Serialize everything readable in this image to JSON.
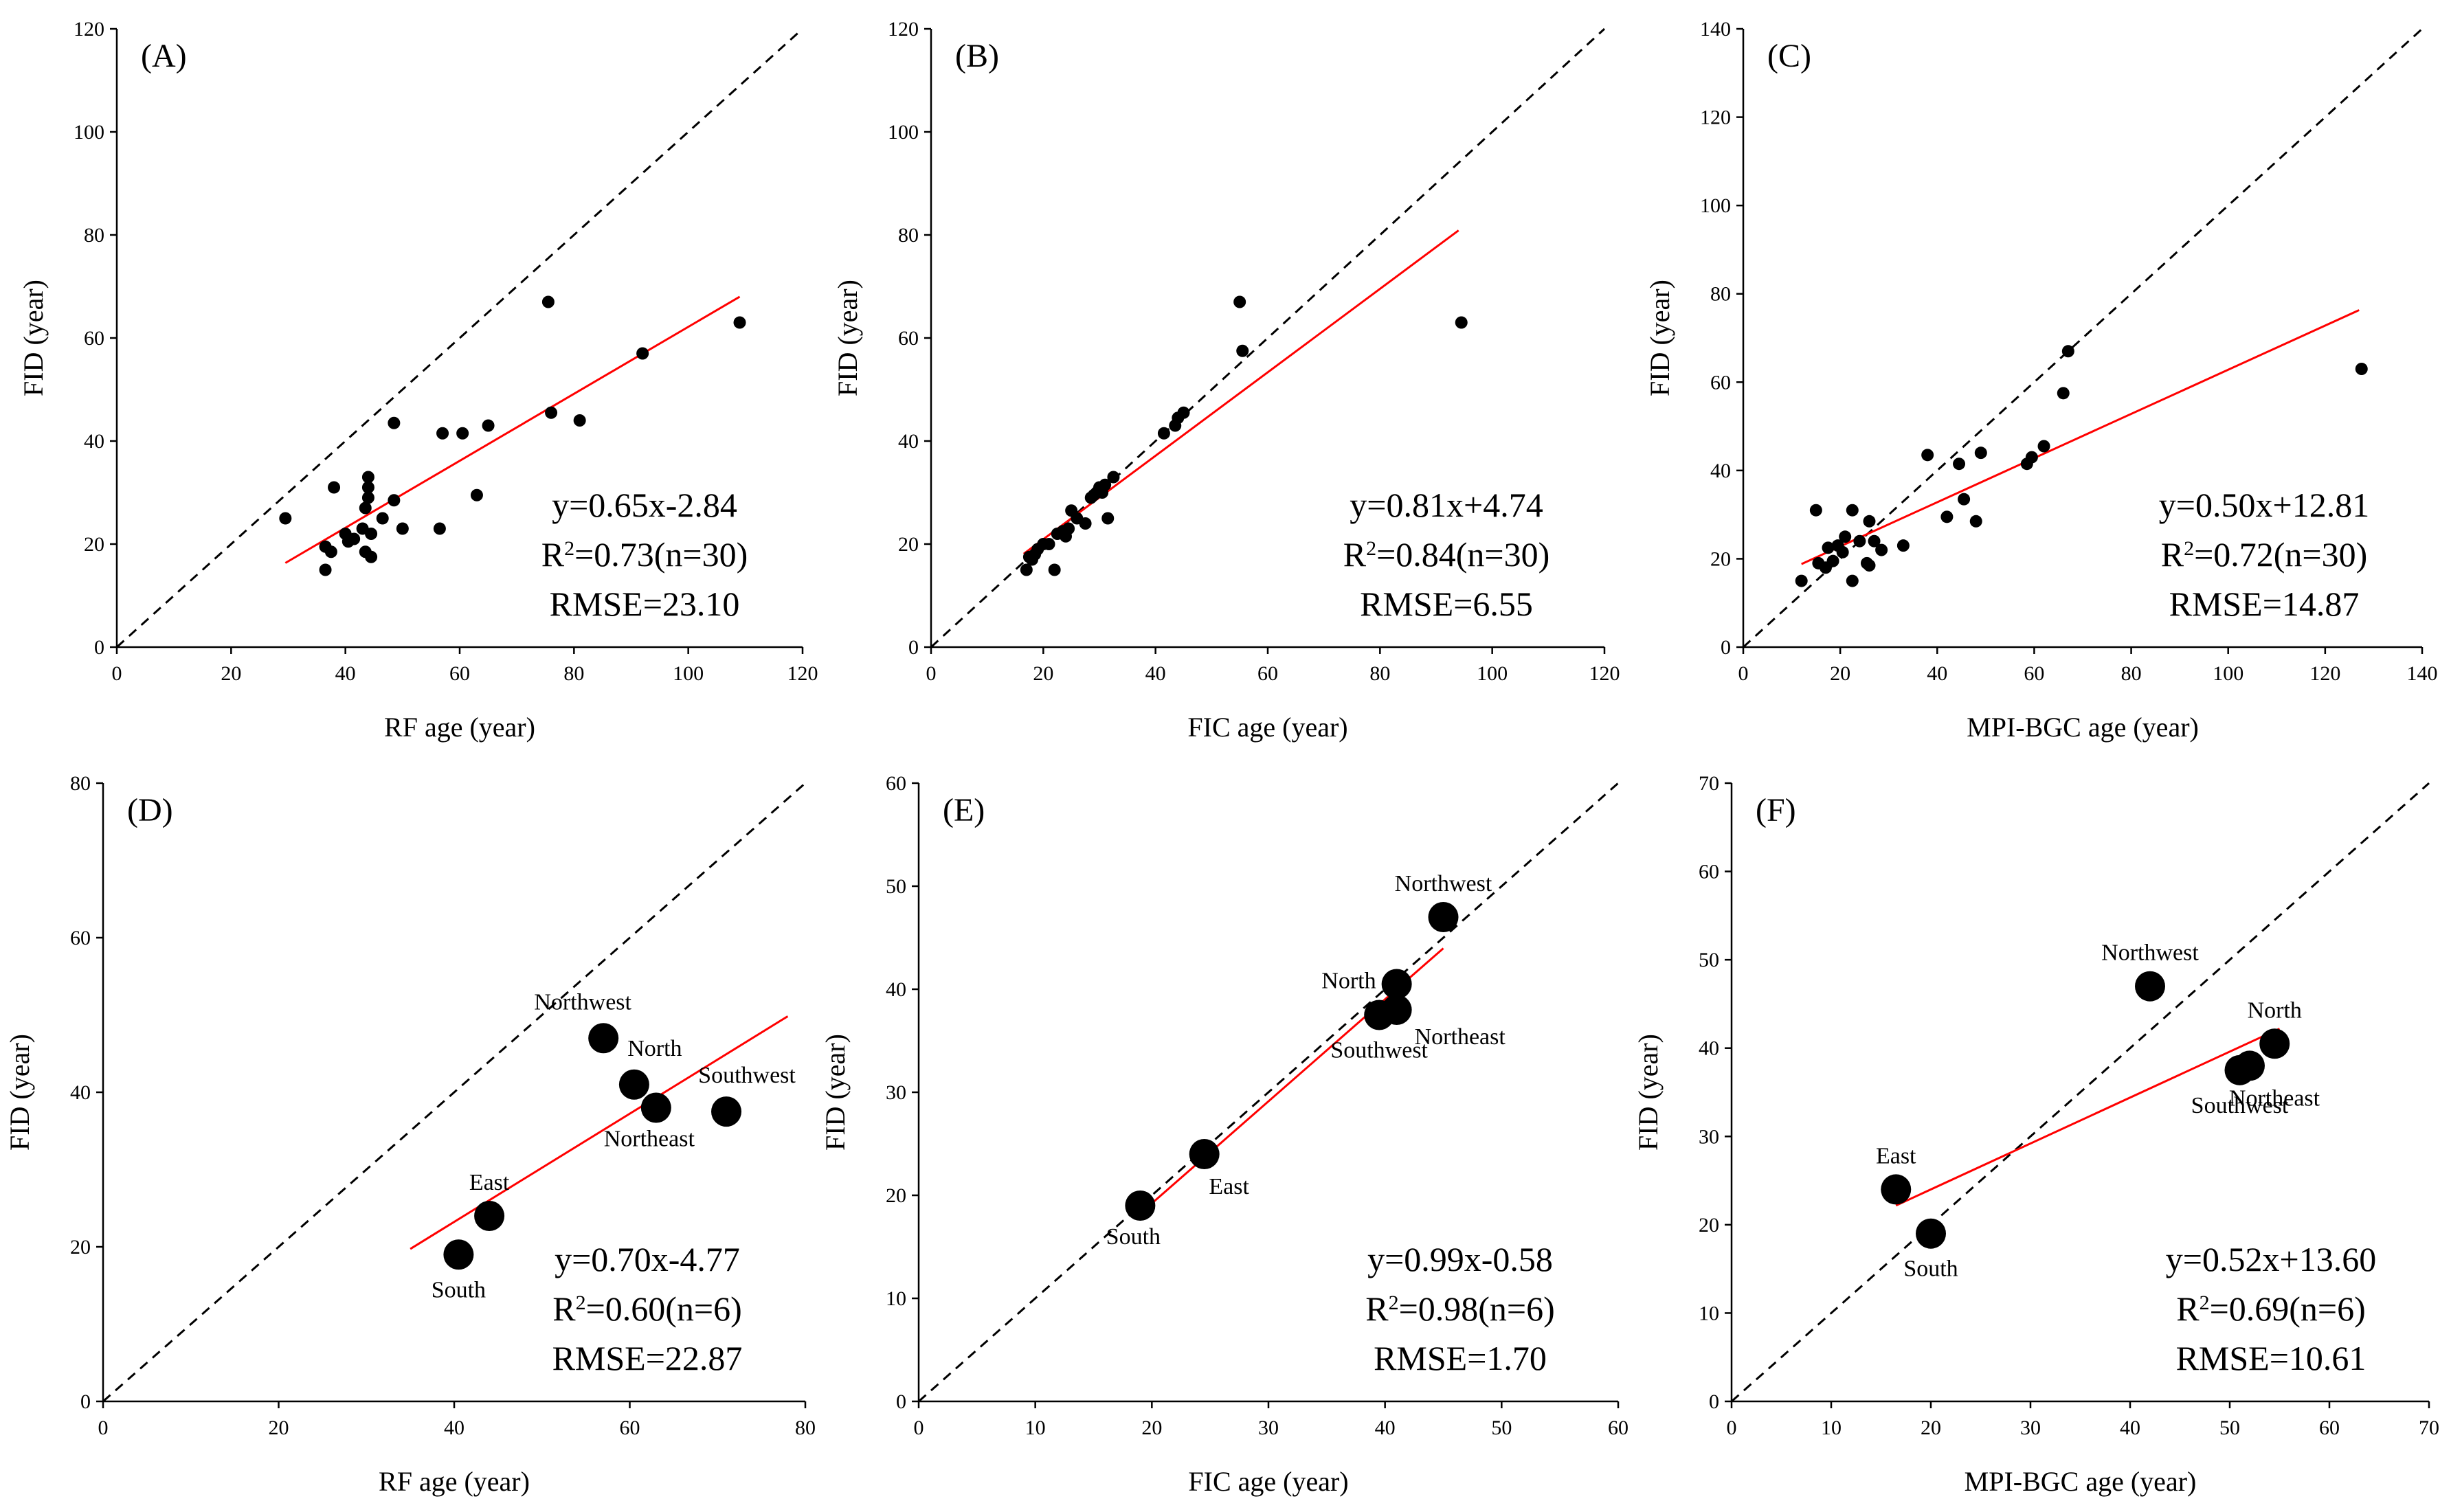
{
  "chart_data": [
    {
      "type": "scatter",
      "panel": "(A)",
      "xlabel": "RF age (year)",
      "ylabel": "FID (year)",
      "xlim": [
        0,
        120
      ],
      "ylim": [
        0,
        120
      ],
      "xticks": [
        0,
        20,
        40,
        60,
        80,
        100,
        120
      ],
      "yticks": [
        0,
        20,
        40,
        60,
        80,
        100,
        120
      ],
      "fit": {
        "slope": 0.65,
        "intercept": -2.84,
        "x_range": [
          29.5,
          109
        ]
      },
      "annotations": [
        "y=0.65x-2.84",
        "R2=0.73(n=30)",
        "RMSE=23.10"
      ],
      "points": [
        {
          "x": 29.5,
          "y": 25
        },
        {
          "x": 36.5,
          "y": 19.5
        },
        {
          "x": 37.5,
          "y": 18.5
        },
        {
          "x": 38,
          "y": 31
        },
        {
          "x": 36.5,
          "y": 15
        },
        {
          "x": 40,
          "y": 22
        },
        {
          "x": 41.5,
          "y": 21
        },
        {
          "x": 43,
          "y": 23
        },
        {
          "x": 43.5,
          "y": 27
        },
        {
          "x": 44,
          "y": 33
        },
        {
          "x": 44,
          "y": 31
        },
        {
          "x": 44,
          "y": 29
        },
        {
          "x": 43.5,
          "y": 18.5
        },
        {
          "x": 44.5,
          "y": 17.5
        },
        {
          "x": 44.5,
          "y": 22
        },
        {
          "x": 48.5,
          "y": 43.5
        },
        {
          "x": 48.5,
          "y": 28.5
        },
        {
          "x": 50,
          "y": 23
        },
        {
          "x": 56.5,
          "y": 23
        },
        {
          "x": 57,
          "y": 41.5
        },
        {
          "x": 60.5,
          "y": 41.5
        },
        {
          "x": 63,
          "y": 29.5
        },
        {
          "x": 65,
          "y": 43
        },
        {
          "x": 75.5,
          "y": 67
        },
        {
          "x": 76,
          "y": 45.5
        },
        {
          "x": 81,
          "y": 44
        },
        {
          "x": 92,
          "y": 57
        },
        {
          "x": 109,
          "y": 63
        },
        {
          "x": 46.5,
          "y": 25
        },
        {
          "x": 40.5,
          "y": 20.5
        }
      ]
    },
    {
      "type": "scatter",
      "panel": "(B)",
      "xlabel": "FIC age (year)",
      "ylabel": "FID (year)",
      "xlim": [
        0,
        120
      ],
      "ylim": [
        0,
        120
      ],
      "xticks": [
        0,
        20,
        40,
        60,
        80,
        100,
        120
      ],
      "yticks": [
        0,
        20,
        40,
        60,
        80,
        100,
        120
      ],
      "fit": {
        "slope": 0.81,
        "intercept": 4.74,
        "x_range": [
          16.5,
          94
        ]
      },
      "annotations": [
        "y=0.81x+4.74",
        "R2=0.84(n=30)",
        "RMSE=6.55"
      ],
      "points": [
        {
          "x": 17,
          "y": 15
        },
        {
          "x": 17.5,
          "y": 17.5
        },
        {
          "x": 18.5,
          "y": 18
        },
        {
          "x": 19,
          "y": 19
        },
        {
          "x": 20,
          "y": 20
        },
        {
          "x": 22,
          "y": 15
        },
        {
          "x": 22.5,
          "y": 22
        },
        {
          "x": 23.5,
          "y": 22.5
        },
        {
          "x": 24.5,
          "y": 23
        },
        {
          "x": 25,
          "y": 26.5
        },
        {
          "x": 27.5,
          "y": 24
        },
        {
          "x": 28.5,
          "y": 29
        },
        {
          "x": 29.5,
          "y": 30
        },
        {
          "x": 30,
          "y": 31
        },
        {
          "x": 31.5,
          "y": 25
        },
        {
          "x": 32.5,
          "y": 33
        },
        {
          "x": 41.5,
          "y": 41.5
        },
        {
          "x": 43.5,
          "y": 43
        },
        {
          "x": 44,
          "y": 44.5
        },
        {
          "x": 45,
          "y": 45.5
        },
        {
          "x": 55,
          "y": 67
        },
        {
          "x": 55.5,
          "y": 57.5
        },
        {
          "x": 94.5,
          "y": 63
        },
        {
          "x": 18,
          "y": 17
        },
        {
          "x": 21,
          "y": 20
        },
        {
          "x": 26,
          "y": 25
        },
        {
          "x": 29,
          "y": 29.5
        },
        {
          "x": 31,
          "y": 31.5
        },
        {
          "x": 24,
          "y": 21.5
        },
        {
          "x": 30.5,
          "y": 30
        }
      ]
    },
    {
      "type": "scatter",
      "panel": "(C)",
      "xlabel": "MPI-BGC age (year)",
      "ylabel": "FID (year)",
      "xlim": [
        0,
        140
      ],
      "ylim": [
        0,
        140
      ],
      "xticks": [
        0,
        20,
        40,
        60,
        80,
        100,
        120,
        140
      ],
      "yticks": [
        0,
        20,
        40,
        60,
        80,
        100,
        120,
        140
      ],
      "fit": {
        "slope": 0.5,
        "intercept": 12.81,
        "x_range": [
          12,
          127
        ]
      },
      "annotations": [
        "y=0.50x+12.81",
        "R2=0.72(n=30)",
        "RMSE=14.87"
      ],
      "points": [
        {
          "x": 12,
          "y": 15
        },
        {
          "x": 15,
          "y": 31
        },
        {
          "x": 15.5,
          "y": 19
        },
        {
          "x": 17,
          "y": 18
        },
        {
          "x": 17.5,
          "y": 22.5
        },
        {
          "x": 18.5,
          "y": 19.5
        },
        {
          "x": 19.5,
          "y": 23
        },
        {
          "x": 21,
          "y": 25
        },
        {
          "x": 22.5,
          "y": 31
        },
        {
          "x": 22.5,
          "y": 15
        },
        {
          "x": 24,
          "y": 24
        },
        {
          "x": 25.5,
          "y": 19
        },
        {
          "x": 26,
          "y": 28.5
        },
        {
          "x": 26,
          "y": 18.5
        },
        {
          "x": 27,
          "y": 24
        },
        {
          "x": 28.5,
          "y": 22
        },
        {
          "x": 33,
          "y": 23
        },
        {
          "x": 38,
          "y": 43.5
        },
        {
          "x": 42,
          "y": 29.5
        },
        {
          "x": 44.5,
          "y": 41.5
        },
        {
          "x": 45.5,
          "y": 33.5
        },
        {
          "x": 48,
          "y": 28.5
        },
        {
          "x": 49,
          "y": 44
        },
        {
          "x": 58.5,
          "y": 41.5
        },
        {
          "x": 59.5,
          "y": 43
        },
        {
          "x": 62,
          "y": 45.5
        },
        {
          "x": 66,
          "y": 57.5
        },
        {
          "x": 67,
          "y": 67
        },
        {
          "x": 127.5,
          "y": 63
        },
        {
          "x": 20.5,
          "y": 21.5
        }
      ]
    },
    {
      "type": "scatter",
      "panel": "(D)",
      "xlabel": "RF age (year)",
      "ylabel": "FID (year)",
      "xlim": [
        0,
        80
      ],
      "ylim": [
        0,
        80
      ],
      "xticks": [
        0,
        20,
        40,
        60,
        80
      ],
      "yticks": [
        0,
        20,
        40,
        60,
        80
      ],
      "fit": {
        "slope": 0.7,
        "intercept": -4.77,
        "x_range": [
          35,
          78
        ]
      },
      "annotations": [
        "y=0.70x-4.77",
        "R2=0.60(n=6)",
        "RMSE=22.87"
      ],
      "points": [
        {
          "x": 40.5,
          "y": 19,
          "label": "South",
          "pos": "below"
        },
        {
          "x": 44,
          "y": 24,
          "label": "East",
          "pos": "above"
        },
        {
          "x": 57,
          "y": 47,
          "label": "Northwest",
          "pos": "upper-left"
        },
        {
          "x": 60.5,
          "y": 41,
          "label": "North",
          "pos": "upper-right"
        },
        {
          "x": 63,
          "y": 38,
          "label": "Northeast",
          "pos": "lower-left"
        },
        {
          "x": 71,
          "y": 37.5,
          "label": "Southwest",
          "pos": "upper-right"
        }
      ]
    },
    {
      "type": "scatter",
      "panel": "(E)",
      "xlabel": "FIC age (year)",
      "ylabel": "FID (year)",
      "xlim": [
        0,
        60
      ],
      "ylim": [
        0,
        60
      ],
      "xticks": [
        0,
        10,
        20,
        30,
        40,
        50,
        60
      ],
      "yticks": [
        0,
        10,
        20,
        30,
        40,
        50,
        60
      ],
      "fit": {
        "slope": 0.99,
        "intercept": -0.58,
        "x_range": [
          19,
          45
        ]
      },
      "annotations": [
        "y=0.99x-0.58",
        "R2=0.98(n=6)",
        "RMSE=1.70"
      ],
      "points": [
        {
          "x": 19,
          "y": 19,
          "label": "South",
          "pos": "lower-left"
        },
        {
          "x": 24.5,
          "y": 24,
          "label": "East",
          "pos": "lower-right"
        },
        {
          "x": 45,
          "y": 47,
          "label": "Northwest",
          "pos": "above"
        },
        {
          "x": 41,
          "y": 40.5,
          "label": "North",
          "pos": "left"
        },
        {
          "x": 41,
          "y": 38,
          "label": "Northeast",
          "pos": "right"
        },
        {
          "x": 39.5,
          "y": 37.5,
          "label": "Southwest",
          "pos": "below"
        }
      ]
    },
    {
      "type": "scatter",
      "panel": "(F)",
      "xlabel": "MPI-BGC age (year)",
      "ylabel": "FID (year)",
      "xlim": [
        0,
        70
      ],
      "ylim": [
        0,
        70
      ],
      "xticks": [
        0,
        10,
        20,
        30,
        40,
        50,
        60,
        70
      ],
      "yticks": [
        0,
        10,
        20,
        30,
        40,
        50,
        60,
        70
      ],
      "fit": {
        "slope": 0.52,
        "intercept": 13.6,
        "x_range": [
          16.5,
          55
        ]
      },
      "annotations": [
        "y=0.52x+13.60",
        "R2=0.69(n=6)",
        "RMSE=10.61"
      ],
      "points": [
        {
          "x": 20,
          "y": 19,
          "label": "South",
          "pos": "below"
        },
        {
          "x": 16.5,
          "y": 24,
          "label": "East",
          "pos": "above"
        },
        {
          "x": 42,
          "y": 47,
          "label": "Northwest",
          "pos": "above"
        },
        {
          "x": 54.5,
          "y": 40.5,
          "label": "North",
          "pos": "above"
        },
        {
          "x": 52,
          "y": 38,
          "label": "Northeast",
          "pos": "lower-right"
        },
        {
          "x": 51,
          "y": 37.5,
          "label": "Southwest",
          "pos": "below"
        }
      ]
    }
  ],
  "colors": {
    "fit_line": "#ff0000",
    "identity_line": "#000000",
    "points": "#000000"
  }
}
